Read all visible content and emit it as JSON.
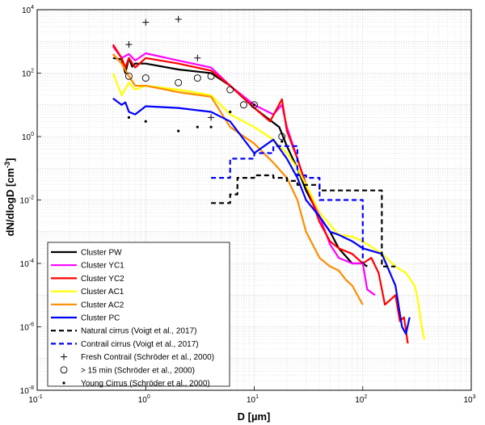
{
  "chart_data": {
    "type": "line",
    "title": "",
    "xlabel": "D [µm]",
    "ylabel_main": "dN/dlogD [cm",
    "ylabel_sup": "-3",
    "ylabel_end": "]",
    "x_scale": "log",
    "y_scale": "log",
    "xlim": [
      0.1,
      1000
    ],
    "ylim": [
      1e-08,
      10000
    ],
    "grid": true,
    "legend_position": "bottom-left",
    "x_ticks": [
      {
        "value": 0.1,
        "base": "10",
        "exp": "-1"
      },
      {
        "value": 1,
        "base": "10",
        "exp": "0"
      },
      {
        "value": 10,
        "base": "10",
        "exp": "1"
      },
      {
        "value": 100,
        "base": "10",
        "exp": "2"
      },
      {
        "value": 1000,
        "base": "10",
        "exp": "3"
      }
    ],
    "y_ticks": [
      {
        "value": 1e-08,
        "base": "10",
        "exp": "-8"
      },
      {
        "value": 1e-06,
        "base": "10",
        "exp": "-6"
      },
      {
        "value": 0.0001,
        "base": "10",
        "exp": "-4"
      },
      {
        "value": 0.01,
        "base": "10",
        "exp": "-2"
      },
      {
        "value": 1,
        "base": "10",
        "exp": "0"
      },
      {
        "value": 100,
        "base": "10",
        "exp": "2"
      },
      {
        "value": 10000,
        "base": "10",
        "exp": "4"
      }
    ],
    "series": [
      {
        "name": "Cluster PW",
        "kind": "line",
        "color": "#000000",
        "dash": "solid",
        "x": [
          0.5,
          0.6,
          0.65,
          0.7,
          0.75,
          0.8,
          1.0,
          2.0,
          4.0,
          6.0,
          8.0,
          10.0,
          13.0,
          17.0,
          20.0,
          25.0,
          30.0,
          40.0,
          50.0,
          60.0,
          80.0,
          100.0,
          110.0
        ],
        "y": [
          300,
          270,
          100,
          300,
          160,
          200,
          200,
          130,
          100,
          40,
          16,
          8,
          4,
          2,
          0.5,
          0.1,
          0.02,
          0.003,
          0.001,
          0.0003,
          0.0001,
          0.0001,
          8e-05
        ]
      },
      {
        "name": "Cluster YC1",
        "kind": "line",
        "color": "#ff00ff",
        "dash": "solid",
        "x": [
          0.5,
          0.6,
          0.7,
          0.8,
          1.0,
          2.0,
          4.0,
          6.0,
          10.0,
          15.0,
          18.0,
          20.0,
          25.0,
          30.0,
          40.0,
          50.0,
          60.0,
          80.0,
          100.0,
          110.0,
          130.0
        ],
        "y": [
          700,
          300,
          400,
          250,
          420,
          250,
          150,
          40,
          10,
          5,
          10,
          2,
          0.2,
          0.03,
          0.003,
          0.0004,
          0.00015,
          0.0001,
          0.0001,
          1.5e-05,
          1e-05
        ]
      },
      {
        "name": "Cluster YC2",
        "kind": "line",
        "color": "#ff0000",
        "dash": "solid",
        "x": [
          0.5,
          0.6,
          0.65,
          0.7,
          0.8,
          1.0,
          2.0,
          4.0,
          6.0,
          10.0,
          14.0,
          18.0,
          20.0,
          25.0,
          30.0,
          40.0,
          50.0,
          60.0,
          80.0,
          100.0,
          120.0,
          140.0,
          160.0,
          200.0,
          220.0,
          240.0,
          260.0
        ],
        "y": [
          800,
          300,
          150,
          300,
          150,
          300,
          200,
          120,
          40,
          8,
          3,
          15,
          1.5,
          0.2,
          0.03,
          0.002,
          0.0005,
          0.0003,
          0.0002,
          0.0001,
          0.00015,
          5e-05,
          5e-06,
          1e-05,
          1.5e-06,
          2e-06,
          3e-07
        ]
      },
      {
        "name": "Cluster AC1",
        "kind": "line",
        "color": "#ffff00",
        "dash": "solid",
        "x": [
          0.5,
          0.6,
          0.7,
          0.8,
          1.0,
          2.0,
          4.0,
          6.0,
          10.0,
          15.0,
          20.0,
          25.0,
          30.0,
          40.0,
          60.0,
          80.0,
          100.0,
          150.0,
          200.0,
          250.0,
          300.0,
          320.0,
          350.0,
          370.0
        ],
        "y": [
          100,
          20,
          50,
          30,
          40,
          30,
          20,
          5,
          2,
          0.8,
          0.3,
          0.1,
          0.03,
          0.004,
          0.0008,
          0.0007,
          0.0005,
          0.0002,
          8e-05,
          5e-05,
          2e-05,
          8e-06,
          1e-06,
          4e-07
        ]
      },
      {
        "name": "Cluster AC2",
        "kind": "line",
        "color": "#ff8c00",
        "dash": "solid",
        "x": [
          0.5,
          0.6,
          0.7,
          0.8,
          1.0,
          2.0,
          4.0,
          6.0,
          10.0,
          15.0,
          20.0,
          25.0,
          30.0,
          40.0,
          50.0,
          60.0,
          70.0,
          80.0,
          100.0
        ],
        "y": [
          400,
          200,
          80,
          40,
          40,
          25,
          18,
          2,
          0.6,
          0.15,
          0.05,
          0.01,
          0.001,
          0.00015,
          8e-05,
          6e-05,
          3e-05,
          2e-05,
          5e-06
        ]
      },
      {
        "name": "Cluster PC",
        "kind": "line",
        "color": "#0000ff",
        "dash": "solid",
        "x": [
          0.5,
          0.6,
          0.65,
          0.7,
          0.8,
          1.0,
          2.0,
          4.0,
          6.0,
          10.0,
          15.0,
          20.0,
          25.0,
          30.0,
          40.0,
          50.0,
          60.0,
          80.0,
          100.0,
          150.0,
          200.0,
          230.0,
          250.0,
          270.0
        ],
        "y": [
          16,
          10,
          12,
          6,
          5,
          9,
          8,
          6,
          3,
          0.3,
          0.8,
          0.2,
          0.05,
          0.01,
          0.003,
          0.001,
          0.0008,
          0.0005,
          0.0003,
          0.0002,
          2e-05,
          1e-06,
          6e-07,
          2e-06
        ]
      },
      {
        "name": "Natural cirrus (Voigt et al., 2017)",
        "kind": "step",
        "color": "#000000",
        "dash": "dashed",
        "x": [
          4.0,
          6.0,
          6.0,
          7.0,
          7.0,
          10.0,
          10.0,
          15.0,
          15.0,
          20.0,
          20.0,
          25.0,
          25.0,
          40.0,
          40.0,
          100.0,
          100.0,
          150.0,
          150.0,
          200.0
        ],
        "y": [
          0.008,
          0.008,
          0.015,
          0.015,
          0.05,
          0.05,
          0.06,
          0.06,
          0.05,
          0.05,
          0.04,
          0.04,
          0.03,
          0.03,
          0.02,
          0.02,
          0.02,
          0.02,
          8e-05,
          8e-05
        ]
      },
      {
        "name": "Contrail cirrus (Voigt et al., 2017)",
        "kind": "step",
        "color": "#0000ff",
        "dash": "dashed",
        "x": [
          4.0,
          6.0,
          6.0,
          10.0,
          10.0,
          15.0,
          15.0,
          25.0,
          25.0,
          30.0,
          30.0,
          40.0,
          40.0,
          100.0,
          100.0
        ],
        "y": [
          0.05,
          0.05,
          0.2,
          0.2,
          0.3,
          0.3,
          0.5,
          0.5,
          0.06,
          0.06,
          0.05,
          0.05,
          0.01,
          0.01,
          0.0001
        ]
      },
      {
        "name": "Fresh Contrail (Schröder et al., 2000)",
        "kind": "marker",
        "marker": "plus",
        "color": "#000000",
        "x": [
          0.7,
          1.0,
          2.0,
          3.0,
          4.0
        ],
        "y": [
          800,
          4000,
          5000,
          300,
          4
        ]
      },
      {
        "name": "> 15 min (Schröder et al., 2000)",
        "kind": "marker",
        "marker": "circle",
        "color": "#000000",
        "x": [
          0.7,
          1.0,
          2.0,
          3.0,
          4.0,
          6.0,
          8.0,
          10.0,
          18.0
        ],
        "y": [
          80,
          70,
          50,
          70,
          80,
          30,
          10,
          10,
          1
        ]
      },
      {
        "name": "Young Cirrus (Schröder et al., 2000)",
        "kind": "marker",
        "marker": "dot",
        "color": "#000000",
        "x": [
          0.7,
          1.0,
          2.0,
          3.0,
          4.0,
          6.0,
          10.0,
          18.0
        ],
        "y": [
          4,
          3,
          1.5,
          2,
          2,
          6,
          10,
          0.7
        ]
      }
    ]
  }
}
